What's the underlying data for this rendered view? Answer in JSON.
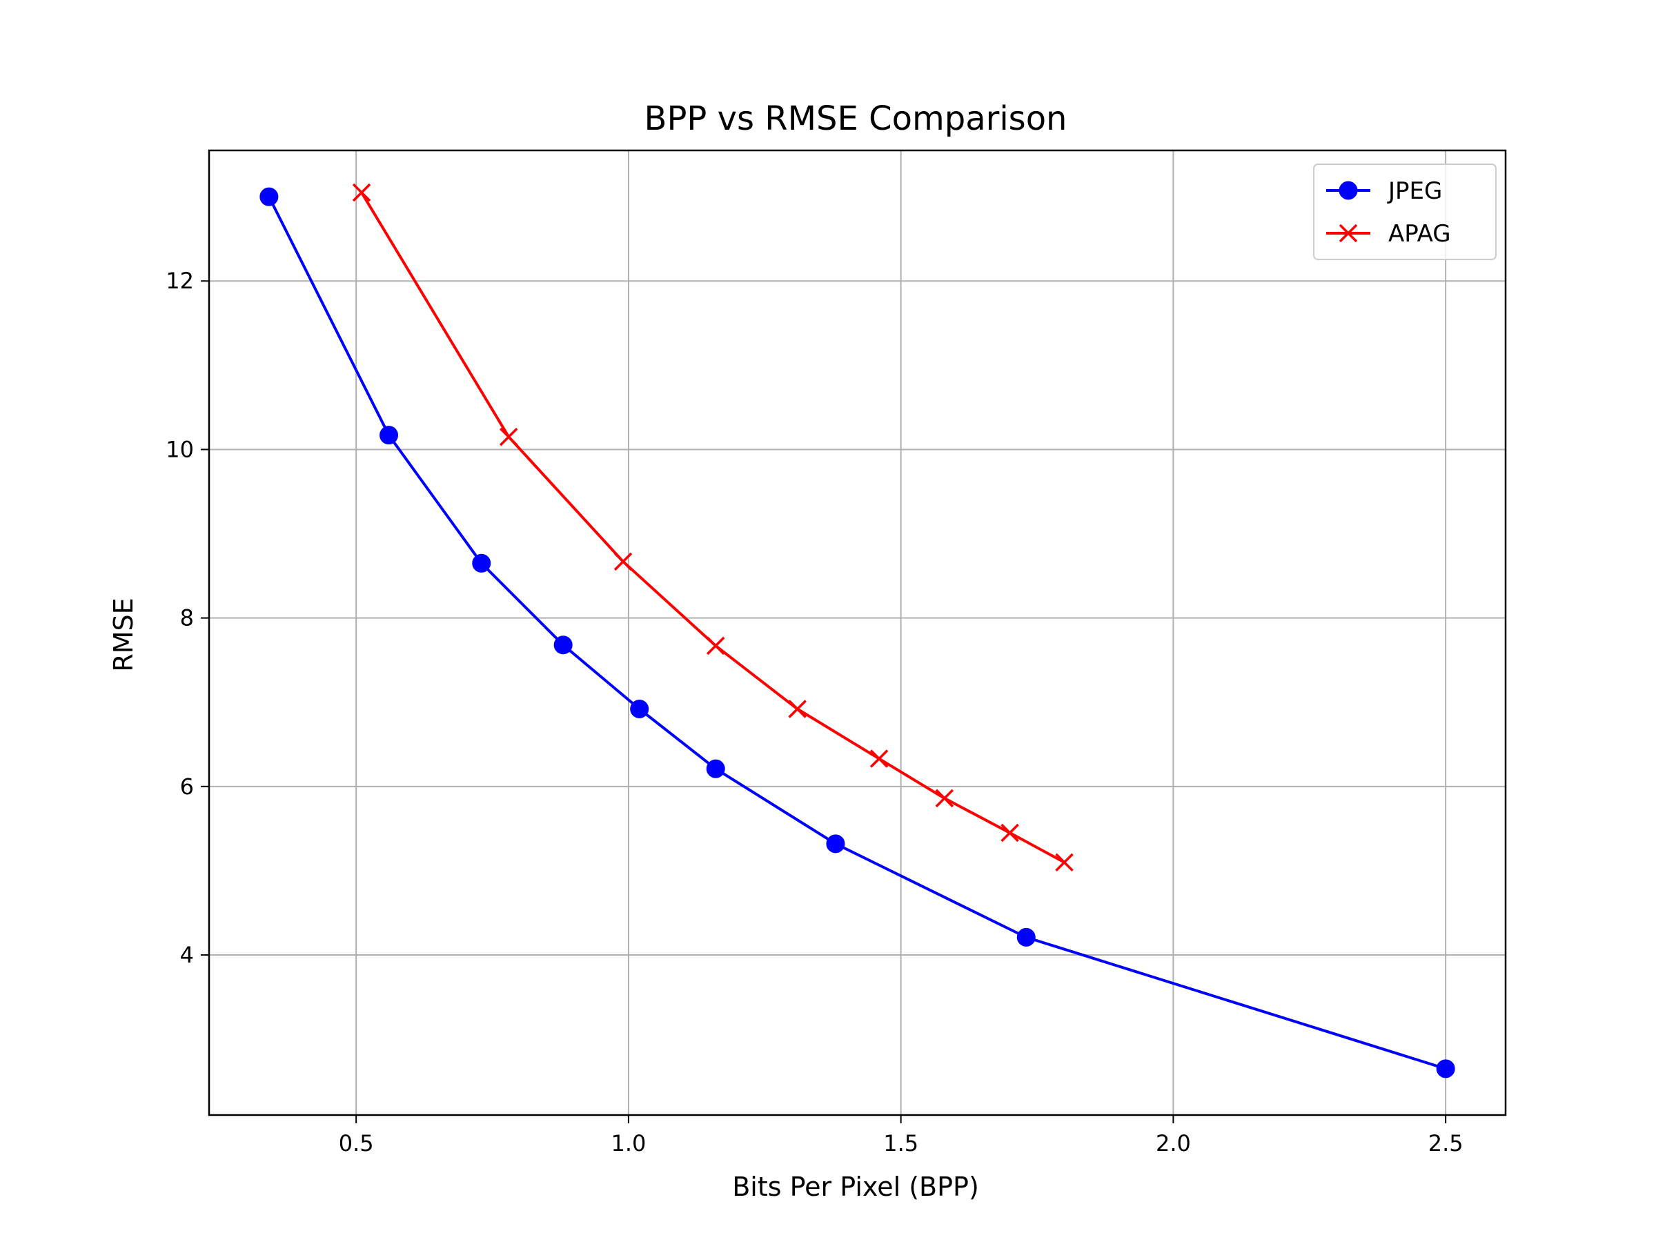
{
  "chart_data": {
    "type": "line",
    "title": "BPP vs RMSE Comparison",
    "xlabel": "Bits Per Pixel (BPP)",
    "ylabel": "RMSE",
    "xlim": [
      0.23,
      2.61
    ],
    "ylim": [
      2.1,
      13.55
    ],
    "xticks": [
      0.5,
      1.0,
      1.5,
      2.0,
      2.5
    ],
    "xtick_labels": [
      "0.5",
      "1.0",
      "1.5",
      "2.0",
      "2.5"
    ],
    "yticks": [
      4,
      6,
      8,
      10,
      12
    ],
    "ytick_labels": [
      "4",
      "6",
      "8",
      "10",
      "12"
    ],
    "grid": true,
    "legend_position": "top-right",
    "series": [
      {
        "name": "JPEG",
        "color": "#0000ff",
        "marker": "circle",
        "x": [
          0.34,
          0.56,
          0.73,
          0.88,
          1.02,
          1.16,
          1.38,
          1.73,
          2.5
        ],
        "y": [
          13.0,
          10.17,
          8.65,
          7.68,
          6.92,
          6.21,
          5.32,
          4.21,
          2.65
        ]
      },
      {
        "name": "APAG",
        "color": "#ff0000",
        "marker": "x",
        "x": [
          0.51,
          0.78,
          0.99,
          1.16,
          1.31,
          1.46,
          1.58,
          1.7,
          1.8
        ],
        "y": [
          13.05,
          10.15,
          8.67,
          7.67,
          6.92,
          6.33,
          5.86,
          5.45,
          5.1
        ]
      }
    ]
  }
}
